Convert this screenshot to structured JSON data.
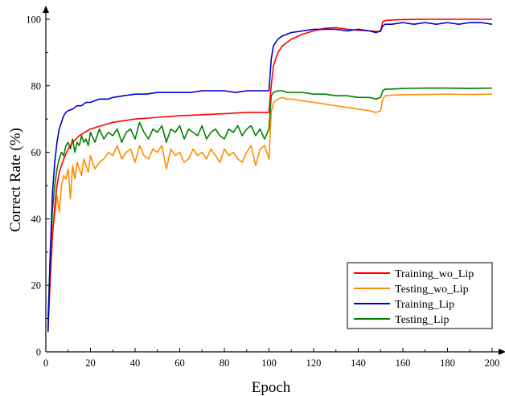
{
  "chart_data": {
    "type": "line",
    "title": "",
    "xlabel": "Epoch",
    "ylabel": "Correct Rate (%)",
    "xlim": [
      0,
      200
    ],
    "ylim": [
      0,
      100
    ],
    "xticks": [
      0,
      20,
      40,
      60,
      80,
      100,
      120,
      140,
      160,
      180,
      200
    ],
    "yticks": [
      0,
      20,
      40,
      60,
      80,
      100
    ],
    "grid": false,
    "legend_position": "bottom-right",
    "series": [
      {
        "name": "Training_wo_Lip",
        "color": "#ff0000",
        "x": [
          1,
          2,
          3,
          4,
          5,
          6,
          8,
          10,
          12,
          15,
          20,
          25,
          30,
          40,
          50,
          60,
          70,
          80,
          90,
          100,
          101,
          102,
          104,
          106,
          110,
          115,
          120,
          125,
          130,
          135,
          140,
          145,
          150,
          151,
          152,
          155,
          160,
          170,
          180,
          190,
          200
        ],
        "y": [
          7,
          22,
          35,
          44,
          50,
          54,
          58,
          61,
          63,
          65,
          67,
          68,
          69,
          70,
          70.5,
          71,
          71.3,
          71.6,
          72,
          72,
          80,
          86,
          90,
          92,
          94,
          95.5,
          96.5,
          97.3,
          97.5,
          97,
          96.7,
          96.5,
          96.3,
          99.3,
          99.6,
          99.8,
          99.9,
          100,
          100,
          100,
          100
        ]
      },
      {
        "name": "Testing_wo_Lip",
        "color": "#ff8c00",
        "x": [
          1,
          2,
          3,
          4,
          5,
          6,
          7,
          8,
          9,
          10,
          11,
          12,
          13,
          14,
          15,
          16,
          17,
          18,
          19,
          20,
          22,
          24,
          26,
          28,
          30,
          32,
          34,
          36,
          38,
          40,
          42,
          44,
          46,
          48,
          50,
          52,
          54,
          56,
          58,
          60,
          62,
          64,
          66,
          68,
          70,
          72,
          74,
          76,
          78,
          80,
          82,
          84,
          86,
          88,
          90,
          92,
          94,
          96,
          98,
          100,
          101,
          102,
          104,
          106,
          108,
          110,
          115,
          120,
          125,
          130,
          135,
          140,
          145,
          148,
          150,
          151,
          152,
          155,
          160,
          170,
          180,
          190,
          200
        ],
        "y": [
          8,
          25,
          36,
          41,
          47,
          42,
          50,
          53,
          52,
          55,
          46,
          56,
          52,
          57,
          55,
          53,
          58,
          56,
          54,
          59,
          55,
          57,
          58,
          60,
          59,
          62,
          58,
          60,
          61,
          57,
          62,
          59,
          58,
          61,
          60,
          62,
          55,
          61,
          59,
          60,
          57,
          58,
          61,
          59,
          60,
          58,
          61,
          59,
          57,
          61,
          59,
          60,
          58,
          57,
          60,
          62,
          56,
          61,
          62,
          58,
          72,
          75,
          76,
          76.5,
          76,
          76,
          75.5,
          75,
          74.5,
          74,
          73.5,
          73,
          72.5,
          72,
          72.5,
          76,
          77,
          77.2,
          77.3,
          77.4,
          77.5,
          77.4,
          77.5
        ]
      },
      {
        "name": "Training_Lip",
        "color": "#0000cc",
        "x": [
          1,
          2,
          3,
          4,
          5,
          6,
          7,
          8,
          9,
          10,
          12,
          14,
          16,
          18,
          20,
          22,
          24,
          26,
          28,
          30,
          35,
          40,
          45,
          50,
          55,
          60,
          65,
          70,
          75,
          80,
          85,
          90,
          95,
          100,
          101,
          102,
          104,
          106,
          108,
          110,
          115,
          120,
          125,
          130,
          135,
          140,
          145,
          148,
          150,
          151,
          152,
          155,
          160,
          165,
          170,
          175,
          180,
          185,
          190,
          195,
          200
        ],
        "y": [
          6,
          30,
          48,
          57,
          63,
          67,
          69,
          71,
          72,
          72.5,
          73,
          74,
          74,
          75,
          75,
          75.5,
          76,
          76,
          76,
          76.5,
          77,
          77.5,
          77.5,
          78,
          78,
          78,
          78,
          78.5,
          78.5,
          78.5,
          78,
          78.5,
          78.5,
          78.5,
          88,
          92,
          94,
          95,
          95.5,
          96,
          96.5,
          97,
          97,
          97,
          96.5,
          97,
          96.5,
          96,
          96.5,
          98,
          98.5,
          98.5,
          99,
          98.5,
          99,
          98.5,
          99,
          98.5,
          99,
          99,
          98.5
        ]
      },
      {
        "name": "Testing_Lip",
        "color": "#008000",
        "x": [
          1,
          2,
          3,
          4,
          5,
          6,
          7,
          8,
          9,
          10,
          11,
          12,
          13,
          14,
          15,
          16,
          17,
          18,
          19,
          20,
          22,
          24,
          26,
          28,
          30,
          32,
          34,
          36,
          38,
          40,
          42,
          44,
          46,
          48,
          50,
          52,
          54,
          56,
          58,
          60,
          62,
          64,
          66,
          68,
          70,
          72,
          74,
          76,
          78,
          80,
          82,
          84,
          86,
          88,
          90,
          92,
          94,
          96,
          98,
          100,
          101,
          102,
          104,
          106,
          108,
          110,
          115,
          120,
          125,
          130,
          135,
          140,
          145,
          148,
          150,
          151,
          152,
          155,
          160,
          170,
          180,
          190,
          200
        ],
        "y": [
          10,
          30,
          43,
          50,
          55,
          58,
          60,
          59,
          62,
          63,
          61,
          64,
          60,
          63,
          62,
          65,
          63,
          64,
          62,
          66,
          63,
          67,
          64,
          66,
          65,
          67,
          63,
          66,
          67,
          64,
          69,
          66,
          64,
          67,
          66,
          68,
          63,
          67,
          66,
          68,
          64,
          67,
          66,
          65,
          68,
          64,
          66,
          67,
          65,
          64,
          67,
          66,
          68,
          65,
          67,
          68,
          65,
          67,
          64,
          67,
          77,
          78,
          78.5,
          78.5,
          78,
          78,
          78,
          77.5,
          77.5,
          77,
          77,
          76.5,
          76.5,
          76,
          76.5,
          78.5,
          79,
          79,
          79.2,
          79.3,
          79.3,
          79.2,
          79.3
        ]
      }
    ]
  }
}
